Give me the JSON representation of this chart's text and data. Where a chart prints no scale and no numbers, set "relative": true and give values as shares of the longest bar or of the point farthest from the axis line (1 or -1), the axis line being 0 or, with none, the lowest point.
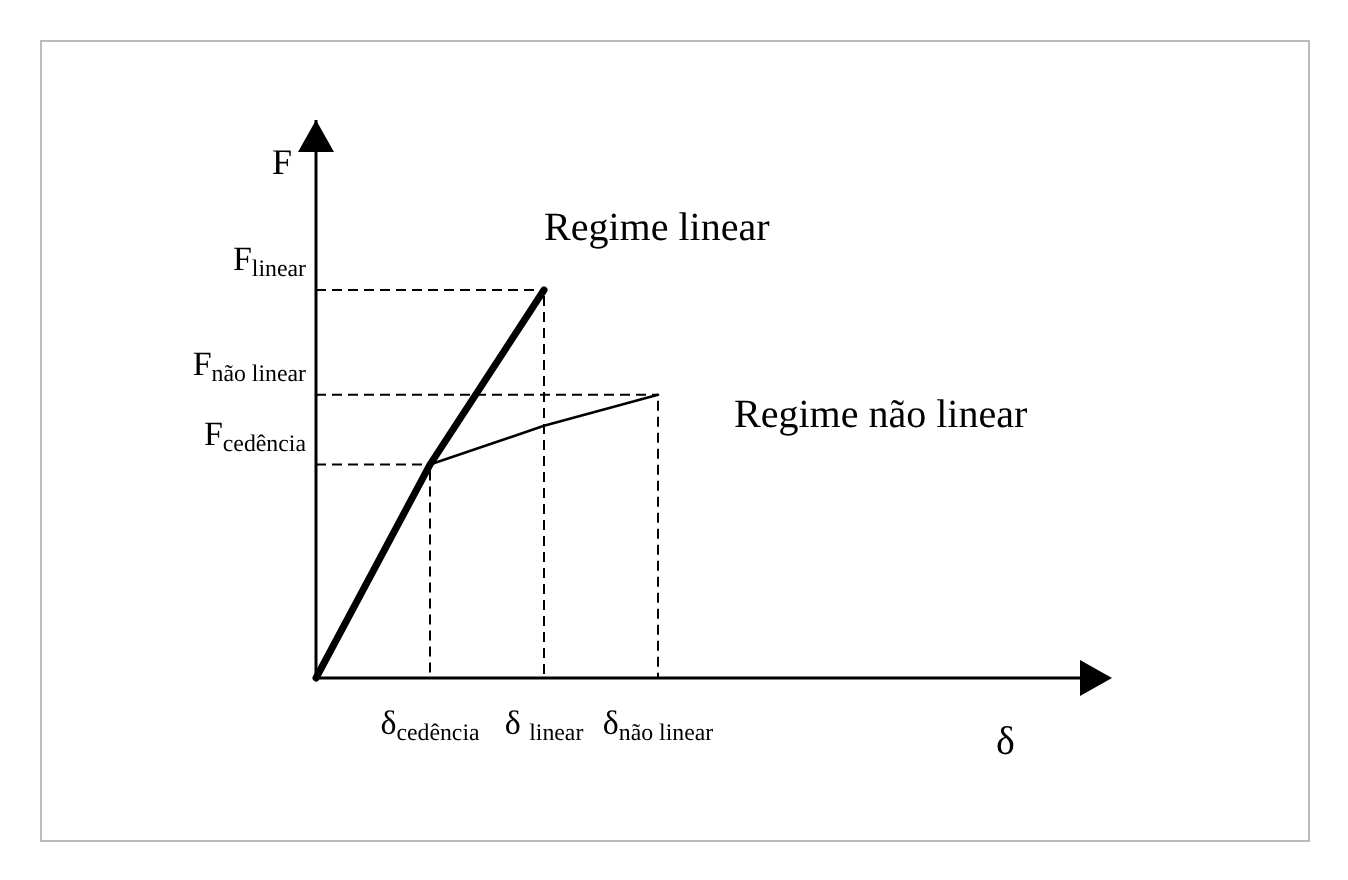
{
  "chart_data": {
    "type": "line",
    "ylabel": "F",
    "relative": true,
    "categories": [
      null,
      "δ$_{cedência}$",
      "δ $_{linear}$",
      "δ$_{não linear}$"
    ],
    "series": [
      {
        "name": "Regime linear",
        "color": "#000000",
        "values": [
          0,
          0.55,
          1,
          null
        ]
      },
      {
        "name": "Regime não linear",
        "color": "#000000",
        "values": [
          null,
          0.55,
          0.65,
          0.73
        ]
      }
    ],
    "annotations": [
      "δ",
      "F$_{linear}$",
      "F$_{não linear}$",
      "F$_{cedência}$"
    ],
    "marker": "none",
    "line_style": "solid"
  }
}
